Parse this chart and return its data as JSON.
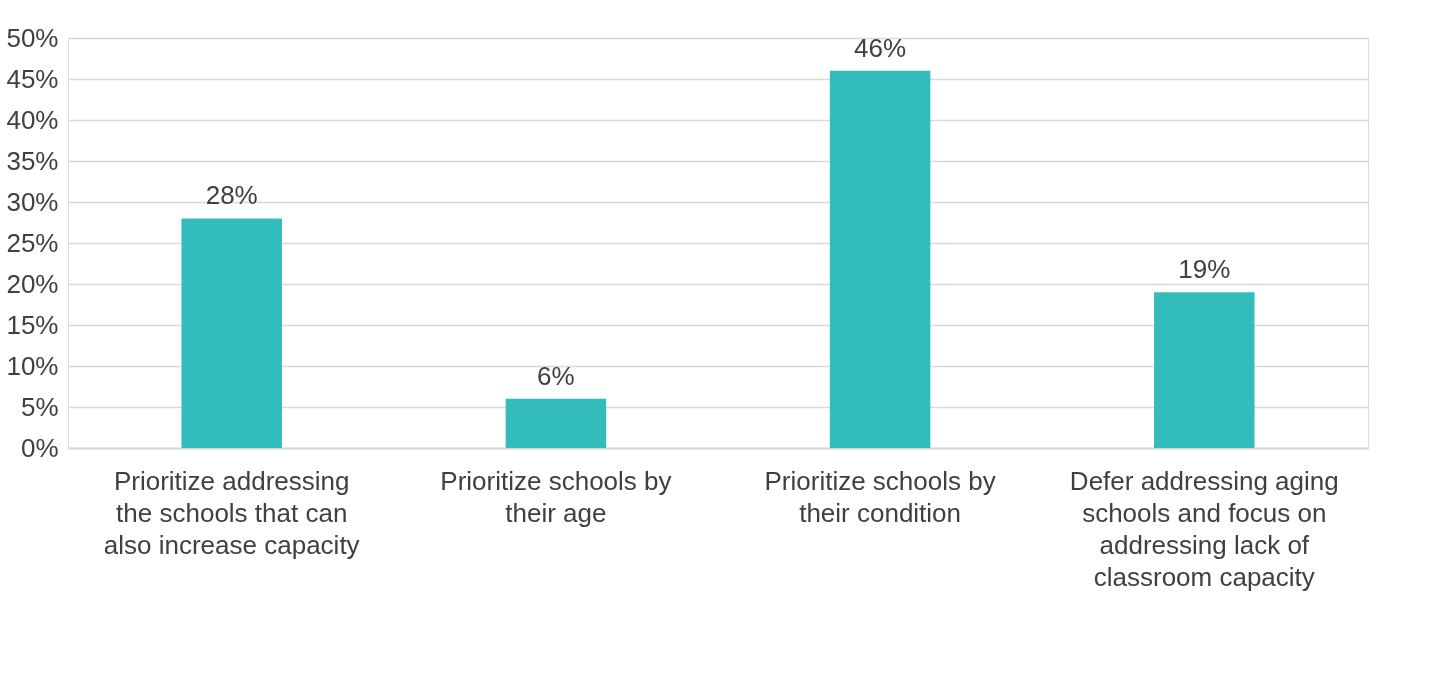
{
  "chart_data": {
    "type": "bar",
    "categories": [
      "Prioritize addressing the schools that can also increase capacity",
      "Prioritize schools by their age",
      "Prioritize schools by their condition",
      "Defer addressing aging schools and focus on addressing lack of classroom capacity"
    ],
    "values": [
      28,
      6,
      46,
      19
    ],
    "value_labels": [
      "28%",
      "6%",
      "46%",
      "19%"
    ],
    "color": "#33bcbc",
    "ylim": [
      0,
      50
    ],
    "yticks": [
      {
        "value": 0,
        "label": "0%"
      },
      {
        "value": 5,
        "label": "5%"
      },
      {
        "value": 10,
        "label": "10%"
      },
      {
        "value": 15,
        "label": "15%"
      },
      {
        "value": 20,
        "label": "20%"
      },
      {
        "value": 25,
        "label": "25%"
      },
      {
        "value": 30,
        "label": "30%"
      },
      {
        "value": 35,
        "label": "35%"
      },
      {
        "value": 40,
        "label": "40%"
      },
      {
        "value": 45,
        "label": "45%"
      },
      {
        "value": 50,
        "label": "50%"
      }
    ],
    "grid": "y"
  }
}
